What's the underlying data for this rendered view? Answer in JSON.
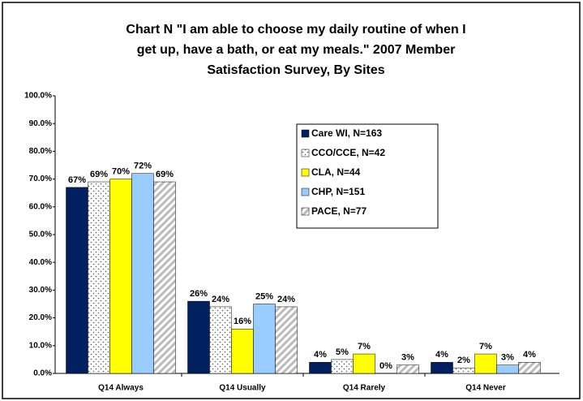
{
  "chart_data": {
    "type": "bar",
    "title": [
      "Chart N  \"I am able to choose my daily routine of when I",
      "get up, have a bath, or eat my meals.\"  2007 Member",
      "Satisfaction Survey, By Sites"
    ],
    "categories": [
      "Q14 Always",
      "Q14 Usually",
      "Q14 Rarely",
      "Q14 Never"
    ],
    "series": [
      {
        "name": "Care WI, N=163",
        "color": "#002060",
        "values": [
          67,
          26,
          4,
          4
        ],
        "value_labels": [
          "67%",
          "26%",
          "4%",
          "4%"
        ]
      },
      {
        "name": "CCO/CCE, N=42",
        "color": "#ffffff",
        "pattern": "dots",
        "values": [
          69,
          24,
          5,
          2
        ],
        "value_labels": [
          "69%",
          "24%",
          "5%",
          "2%"
        ]
      },
      {
        "name": "CLA, N=44",
        "color": "#ffff00",
        "values": [
          70,
          16,
          7,
          7
        ],
        "value_labels": [
          "70%",
          "16%",
          "7%",
          "7%"
        ]
      },
      {
        "name": "CHP, N=151",
        "color": "#99ccff",
        "values": [
          72,
          25,
          0,
          3
        ],
        "value_labels": [
          "72%",
          "25%",
          "0%",
          "3%"
        ]
      },
      {
        "name": "PACE, N=77",
        "color": "#ffffff",
        "pattern": "stripes",
        "values": [
          69,
          24,
          3,
          4
        ],
        "value_labels": [
          "69%",
          "24%",
          "3%",
          "4%"
        ]
      }
    ],
    "ylim": [
      0,
      100
    ],
    "yticks": [
      {
        "value": 0,
        "label": "0.0%"
      },
      {
        "value": 10,
        "label": "10.0%"
      },
      {
        "value": 20,
        "label": "20.0%"
      },
      {
        "value": 30,
        "label": "30.0%"
      },
      {
        "value": 40,
        "label": "40.0%"
      },
      {
        "value": 50,
        "label": "50.0%"
      },
      {
        "value": 60,
        "label": "60.0%"
      },
      {
        "value": 70,
        "label": "70.0%"
      },
      {
        "value": 80,
        "label": "80.0%"
      },
      {
        "value": 90,
        "label": "90.0%"
      },
      {
        "value": 100,
        "label": "100.0%"
      }
    ],
    "grid": false,
    "legend": "upper right"
  }
}
